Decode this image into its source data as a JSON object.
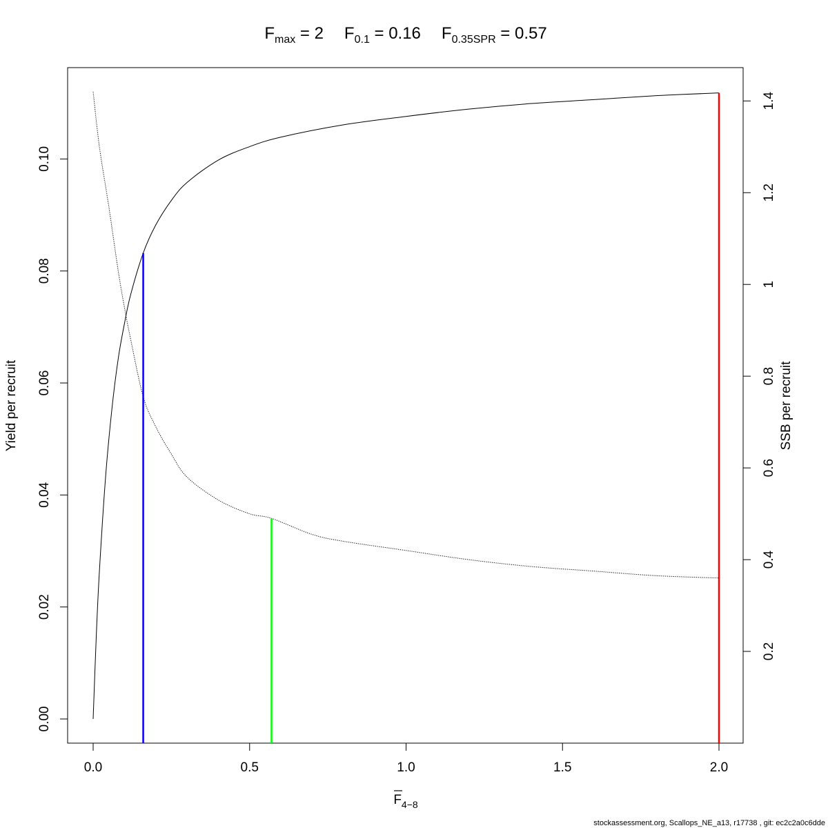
{
  "chart_data": {
    "type": "line",
    "title": {
      "parts": [
        {
          "main": "F",
          "sub": "max",
          "eq": " = 2"
        },
        {
          "main": "F",
          "sub": "0.1",
          "eq": " = 0.16"
        },
        {
          "main": "F",
          "sub": "0.35SPR",
          "eq": " = 0.57"
        }
      ]
    },
    "xlabel": {
      "main": "F",
      "sub": "4−8"
    },
    "ylabel": "Yield per recruit",
    "y2label": "SSB per recruit",
    "xlim": [
      0,
      2
    ],
    "ylim": [
      0,
      0.112
    ],
    "y2lim": [
      0,
      1.42
    ],
    "xticks": [
      0.0,
      0.5,
      1.0,
      1.5,
      2.0
    ],
    "xtick_labels": [
      "0.0",
      "0.5",
      "1.0",
      "1.5",
      "2.0"
    ],
    "yticks": [
      0.0,
      0.02,
      0.04,
      0.06,
      0.08,
      0.1
    ],
    "ytick_labels": [
      "0.00",
      "0.02",
      "0.04",
      "0.06",
      "0.08",
      "0.10"
    ],
    "y2ticks": [
      0.2,
      0.4,
      0.6,
      0.8,
      1.0,
      1.2,
      1.4
    ],
    "y2tick_labels": [
      "0.2",
      "0.4",
      "0.6",
      "0.8",
      "1",
      "1.2",
      "1.4"
    ],
    "series": [
      {
        "axis": "left",
        "style": "solid",
        "color": "#000000",
        "x": [
          0,
          0.01,
          0.02,
          0.04,
          0.06,
          0.08,
          0.1,
          0.12,
          0.16,
          0.2,
          0.25,
          0.3,
          0.4,
          0.5,
          0.6,
          0.8,
          1.0,
          1.2,
          1.4,
          1.6,
          1.8,
          2.0
        ],
        "values": [
          0,
          0.0148,
          0.0264,
          0.0434,
          0.0554,
          0.0643,
          0.0706,
          0.0758,
          0.0832,
          0.0882,
          0.0926,
          0.0958,
          0.0998,
          0.1022,
          0.1039,
          0.1061,
          0.1076,
          0.1089,
          0.1099,
          0.1106,
          0.1113,
          0.1118
        ]
      },
      {
        "axis": "right",
        "style": "dotted",
        "color": "#000000",
        "x": [
          0,
          0.02,
          0.05,
          0.08,
          0.1,
          0.12,
          0.16,
          0.2,
          0.25,
          0.3,
          0.4,
          0.5,
          0.57,
          0.7,
          0.8,
          1.0,
          1.2,
          1.4,
          1.6,
          1.8,
          2.0
        ],
        "values": [
          1.42,
          1.3,
          1.17,
          1.03,
          0.95,
          0.88,
          0.755,
          0.69,
          0.63,
          0.58,
          0.53,
          0.5,
          0.49,
          0.455,
          0.44,
          0.42,
          0.4,
          0.385,
          0.375,
          0.365,
          0.36
        ]
      }
    ],
    "reference_lines": [
      {
        "name": "F0.1",
        "x": 0.16,
        "top_value": 0.0832,
        "top_axis": "left",
        "color": "#0000ff"
      },
      {
        "name": "F0.35SPR",
        "x": 0.57,
        "top_value": 0.49,
        "top_axis": "right",
        "color": "#00ff00"
      },
      {
        "name": "Fmax",
        "x": 2.0,
        "top_value": 0.1118,
        "top_axis": "left",
        "color": "#ff0000"
      }
    ],
    "grid": false,
    "legend": "none"
  },
  "footer": "stockassessment.org, Scallops_NE_a13, r17738 , git: ec2c2a0c6dde"
}
